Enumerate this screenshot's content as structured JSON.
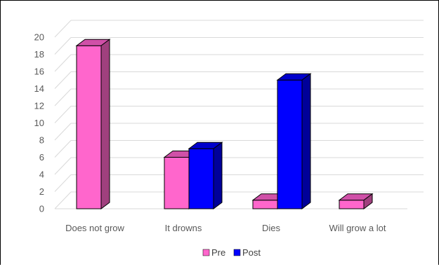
{
  "chart_data": {
    "type": "bar",
    "style": "3d-clustered-column",
    "categories": [
      "Does not grow",
      "It drowns",
      "Dies",
      "Will grow a lot"
    ],
    "series": [
      {
        "name": "Pre",
        "values": [
          19,
          6,
          1,
          1
        ],
        "color": "#ff66cc",
        "color_top": "#d050a8",
        "color_side": "#a0407e"
      },
      {
        "name": "Post",
        "values": [
          0,
          7,
          15,
          0
        ],
        "color": "#0000ff",
        "color_top": "#0000cc",
        "color_side": "#000099"
      }
    ],
    "title": "",
    "xlabel": "",
    "ylabel": "",
    "ylim": [
      0,
      20
    ],
    "yticks": [
      0,
      2,
      4,
      6,
      8,
      10,
      12,
      14,
      16,
      18,
      20
    ],
    "grid": true,
    "legend": "bottom"
  }
}
